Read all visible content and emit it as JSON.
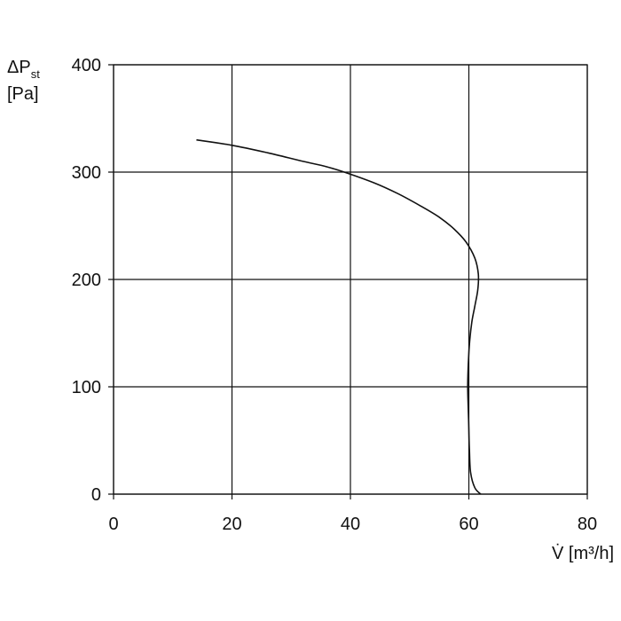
{
  "chart_data": {
    "type": "line",
    "xlabel": "V̇ [m³/h]",
    "ylabel_main": "ΔP",
    "ylabel_sub": "st",
    "ylabel_unit": "[Pa]",
    "xlim": [
      0,
      80
    ],
    "ylim": [
      0,
      400
    ],
    "x_ticks": [
      0,
      20,
      40,
      60,
      80
    ],
    "y_ticks": [
      0,
      100,
      200,
      300,
      400
    ],
    "x_tick_labels": [
      "0",
      "20",
      "40",
      "60",
      "80"
    ],
    "y_tick_labels": [
      "0",
      "100",
      "200",
      "300",
      "400"
    ],
    "grid": true,
    "colors": {
      "line": "#111111",
      "grid": "#111111",
      "frame": "#111111"
    },
    "series": [
      {
        "points": [
          [
            14,
            330
          ],
          [
            20,
            325
          ],
          [
            26,
            318
          ],
          [
            32,
            310
          ],
          [
            36,
            305
          ],
          [
            39.5,
            299
          ],
          [
            44,
            290
          ],
          [
            48,
            280
          ],
          [
            52,
            268
          ],
          [
            55,
            258
          ],
          [
            57.5,
            247
          ],
          [
            59.5,
            235
          ],
          [
            61,
            220
          ],
          [
            61.6,
            205
          ],
          [
            61.5,
            190
          ],
          [
            61,
            175
          ],
          [
            60.5,
            160
          ],
          [
            60.1,
            140
          ],
          [
            59.9,
            120
          ],
          [
            59.8,
            100
          ],
          [
            59.9,
            80
          ],
          [
            60,
            60
          ],
          [
            60.1,
            40
          ],
          [
            60.3,
            20
          ],
          [
            61,
            6
          ],
          [
            62,
            0
          ]
        ]
      }
    ]
  }
}
